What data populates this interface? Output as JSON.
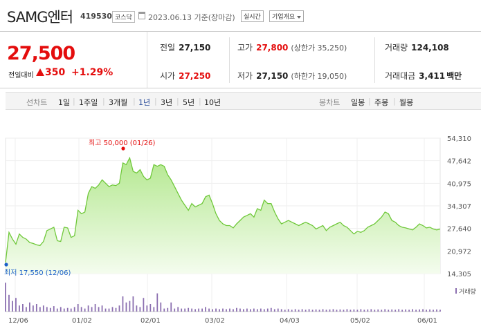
{
  "header": {
    "stock_name": "SAMG엔터",
    "stock_code": "419530",
    "market": "코스닥",
    "date_text": "2023.06.13 기준(장마감)",
    "realtime_button": "실시간",
    "company_info_button": "기업개요"
  },
  "quote": {
    "price": "27,500",
    "change_label": "전일대비",
    "change_value": "350",
    "change_percent": "+1.29%"
  },
  "stats": {
    "prev_close": {
      "label": "전일",
      "value": "27,150"
    },
    "high": {
      "label": "고가",
      "value": "27,800",
      "sub": "(상한가 35,250)"
    },
    "volume": {
      "label": "거래량",
      "value": "124,108"
    },
    "open": {
      "label": "시가",
      "value": "27,250"
    },
    "low": {
      "label": "저가",
      "value": "27,150",
      "sub": "(하한가 19,050)"
    },
    "amount": {
      "label": "거래대금",
      "value": "3,411",
      "unit": "백만"
    }
  },
  "period_bar": {
    "line_label": "선차트",
    "periods": [
      "1일",
      "1주일",
      "3개월",
      "1년",
      "3년",
      "5년",
      "10년"
    ],
    "selected": "1년",
    "candle_label": "봉차트",
    "candle_periods": [
      "일봉",
      "주봉",
      "월봉"
    ]
  },
  "colors": {
    "up": "#e40d0d",
    "line": "#6fc83a",
    "fill_top": "#b4e890",
    "fill_bottom": "#f4fcee",
    "volume": "#8b6fb0",
    "selected": "#2a4c9a"
  },
  "chart_data": {
    "type": "area",
    "y_ticks": [
      "54,310",
      "47,642",
      "40,975",
      "34,307",
      "27,640",
      "20,972",
      "14,305"
    ],
    "ylim": [
      14305,
      54310
    ],
    "x_ticks": [
      "12/06",
      "01/02",
      "02/01",
      "03/02",
      "04/03",
      "05/02",
      "06/01"
    ],
    "max_annotation": "최고 50,000 (01/26)",
    "min_annotation": "최저 17,550 (12/06)",
    "volume_label": "거래량",
    "price": [
      17550,
      26500,
      24500,
      23000,
      26000,
      25000,
      24500,
      23500,
      23200,
      22800,
      22600,
      23800,
      27000,
      27500,
      28000,
      24000,
      23800,
      28000,
      27800,
      25000,
      25500,
      33000,
      32000,
      32500,
      38000,
      40000,
      39500,
      40500,
      42000,
      41000,
      40000,
      40500,
      40300,
      41000,
      47000,
      46500,
      48500,
      44500,
      44000,
      45000,
      43000,
      42000,
      42500,
      46500,
      46000,
      46500,
      46000,
      43500,
      42000,
      40000,
      38000,
      36000,
      34500,
      33000,
      35000,
      34000,
      34500,
      35000,
      37000,
      37500,
      35000,
      32000,
      30000,
      29000,
      28500,
      28500,
      27800,
      29000,
      30000,
      31000,
      31500,
      32000,
      31000,
      33500,
      33000,
      36000,
      35000,
      35000,
      32500,
      30500,
      29000,
      29500,
      30000,
      29500,
      29000,
      28500,
      29000,
      29500,
      29000,
      28500,
      27500,
      28000,
      28500,
      27000,
      28000,
      28500,
      29000,
      29500,
      28500,
      28000,
      27000,
      26000,
      26800,
      26500,
      27000,
      28000,
      28500,
      29000,
      30000,
      31000,
      32500,
      32000,
      30000,
      29500,
      28500,
      28000,
      27800,
      27500,
      27200,
      28000,
      29000,
      28500,
      27800,
      28000,
      27500,
      27200,
      27500
    ],
    "volume": [
      0.95,
      0.55,
      0.35,
      0.45,
      0.2,
      0.25,
      0.15,
      0.3,
      0.2,
      0.25,
      0.15,
      0.2,
      0.15,
      0.12,
      0.18,
      0.1,
      0.15,
      0.1,
      0.12,
      0.1,
      0.15,
      0.25,
      0.15,
      0.1,
      0.2,
      0.15,
      0.25,
      0.15,
      0.2,
      0.1,
      0.1,
      0.15,
      0.12,
      0.2,
      0.5,
      0.3,
      0.35,
      0.5,
      0.2,
      0.15,
      0.45,
      0.2,
      0.25,
      0.15,
      0.6,
      0.3,
      0.1,
      0.12,
      0.3,
      0.1,
      0.15,
      0.1,
      0.1,
      0.12,
      0.1,
      0.08,
      0.1,
      0.1,
      0.15,
      0.1,
      0.08,
      0.1,
      0.08,
      0.1,
      0.08,
      0.1,
      0.08,
      0.12,
      0.1,
      0.08,
      0.1,
      0.08,
      0.1,
      0.08,
      0.1,
      0.08,
      0.1,
      0.12,
      0.08,
      0.1,
      0.08,
      0.06,
      0.08,
      0.06,
      0.08,
      0.06,
      0.08,
      0.06,
      0.08,
      0.06,
      0.07,
      0.06,
      0.08,
      0.06,
      0.07,
      0.08,
      0.06,
      0.07,
      0.06,
      0.08,
      0.06,
      0.07,
      0.06,
      0.08,
      0.06,
      0.07,
      0.08,
      0.06,
      0.07,
      0.06,
      0.08,
      0.06,
      0.07,
      0.06,
      0.08,
      0.06,
      0.07,
      0.06,
      0.08,
      0.06,
      0.07,
      0.08,
      0.06,
      0.07,
      0.06,
      0.07,
      0.06
    ]
  }
}
